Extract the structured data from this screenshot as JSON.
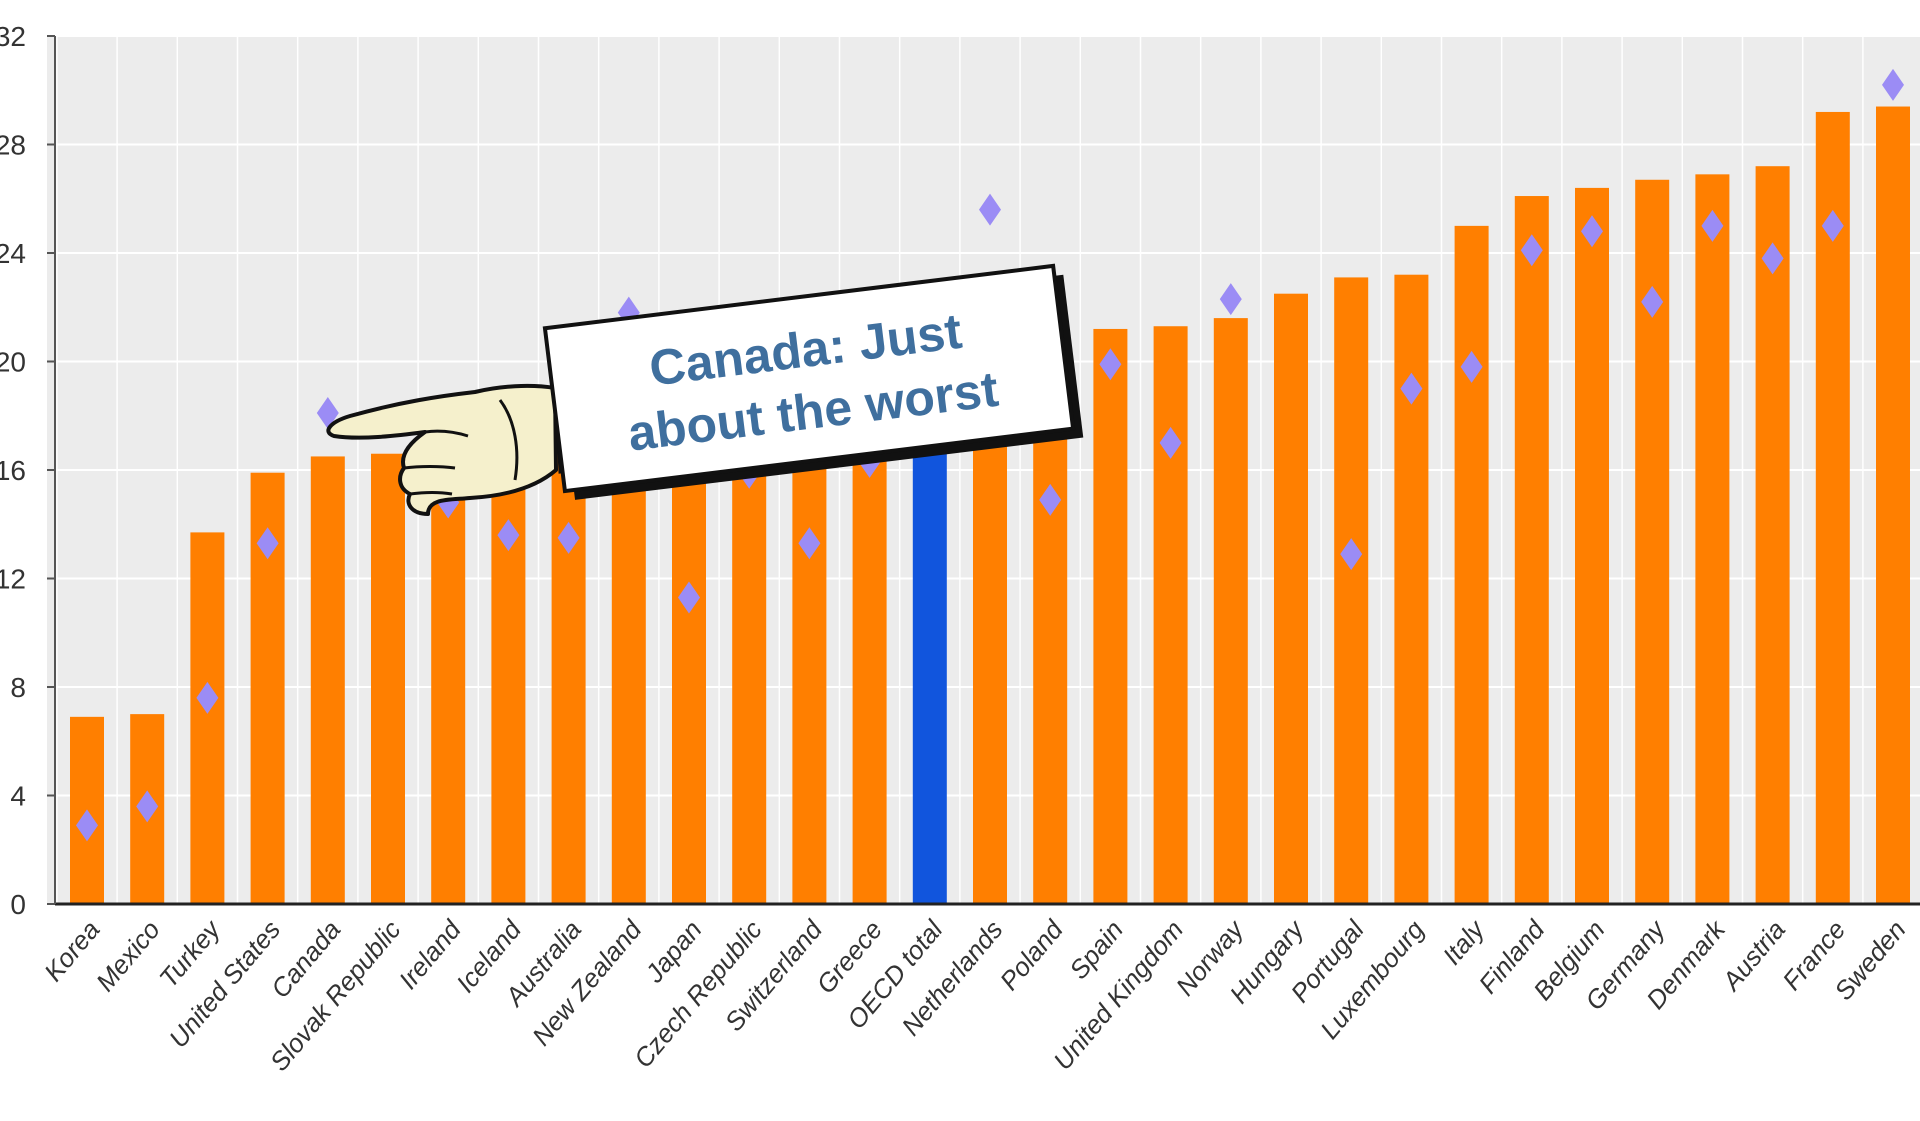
{
  "chart_data": {
    "type": "bar",
    "title": "",
    "xlabel": "",
    "ylabel": "",
    "ylim": [
      0,
      32
    ],
    "yticks": [
      0,
      4,
      8,
      12,
      16,
      20,
      24,
      28,
      32
    ],
    "grid": true,
    "categories": [
      "Korea",
      "Mexico",
      "Turkey",
      "United States",
      "Canada",
      "Slovak Republic",
      "Ireland",
      "Iceland",
      "Australia",
      "New Zealand",
      "Japan",
      "Czech Republic",
      "Switzerland",
      "Greece",
      "OECD total",
      "Netherlands",
      "Poland",
      "Spain",
      "United Kingdom",
      "Norway",
      "Hungary",
      "Portugal",
      "Luxembourg",
      "Italy",
      "Finland",
      "Belgium",
      "Germany",
      "Denmark",
      "Austria",
      "France",
      "Sweden"
    ],
    "series": [
      {
        "type": "bar",
        "values": [
          6.9,
          7.0,
          13.7,
          15.9,
          16.5,
          16.6,
          16.7,
          16.8,
          17.0,
          17.5,
          17.8,
          17.9,
          18.1,
          18.3,
          19.0,
          19.3,
          19.6,
          21.2,
          21.3,
          21.6,
          22.5,
          23.1,
          23.2,
          25.0,
          26.1,
          26.4,
          26.7,
          26.9,
          27.2,
          29.2,
          29.4
        ],
        "colors": {
          "default": "#ff7f00",
          "highlight": "#1155dd"
        },
        "highlight_category": "OECD total"
      },
      {
        "type": "scatter",
        "marker": "diamond",
        "color": "#9b8cf5",
        "values": [
          2.9,
          3.6,
          7.6,
          13.3,
          18.1,
          null,
          14.8,
          13.6,
          13.5,
          21.8,
          11.3,
          15.9,
          13.3,
          16.3,
          null,
          25.6,
          14.9,
          19.9,
          17.0,
          22.3,
          null,
          12.9,
          19.0,
          19.8,
          24.1,
          24.8,
          22.2,
          25.0,
          23.8,
          25.0,
          30.2
        ]
      }
    ],
    "annotations": [
      {
        "text_line1": "Canada: Just",
        "text_line2": "about the worst",
        "target": "Canada"
      }
    ]
  },
  "icons": {
    "pointer": "pointing-hand-icon"
  }
}
